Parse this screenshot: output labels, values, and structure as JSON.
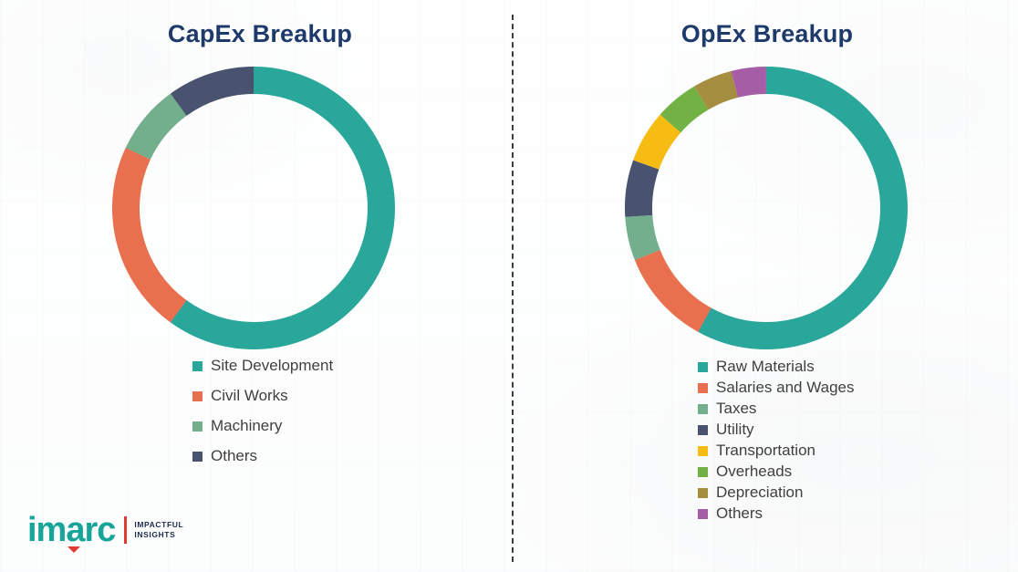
{
  "chart_data": [
    {
      "type": "pie",
      "donut": true,
      "title": "CapEx Breakup",
      "labels": [
        "Site Development",
        "Civil Works",
        "Machinery",
        "Others"
      ],
      "values": [
        60,
        22,
        8,
        10
      ],
      "colors": [
        "#2aa79b",
        "#e8704e",
        "#73ae8d",
        "#49536f"
      ],
      "legend_position": "bottom",
      "start_angle": "top",
      "direction": "clockwise"
    },
    {
      "type": "pie",
      "donut": true,
      "title": "OpEx Breakup",
      "labels": [
        "Raw Materials",
        "Salaries and Wages",
        "Taxes",
        "Utility",
        "Transportation",
        "Overheads",
        "Depreciation",
        "Others"
      ],
      "values": [
        58,
        11,
        5,
        6.5,
        6,
        5,
        4.5,
        4
      ],
      "colors": [
        "#2aa79b",
        "#e8704e",
        "#73ae8d",
        "#49536f",
        "#f7bc13",
        "#72b244",
        "#a58e3f",
        "#a55ea5"
      ],
      "legend_position": "bottom",
      "start_angle": "top",
      "direction": "clockwise"
    }
  ],
  "branding": {
    "logo_text": "imarc",
    "tagline_line1": "IMPACTFUL",
    "tagline_line2": "INSIGHTS",
    "logo_color": "#16a598",
    "accent_color": "#e23a2e"
  },
  "style": {
    "title_color": "#1e3a6b",
    "legend_text_color": "#404040",
    "divider_style": "vertical-dashed"
  }
}
